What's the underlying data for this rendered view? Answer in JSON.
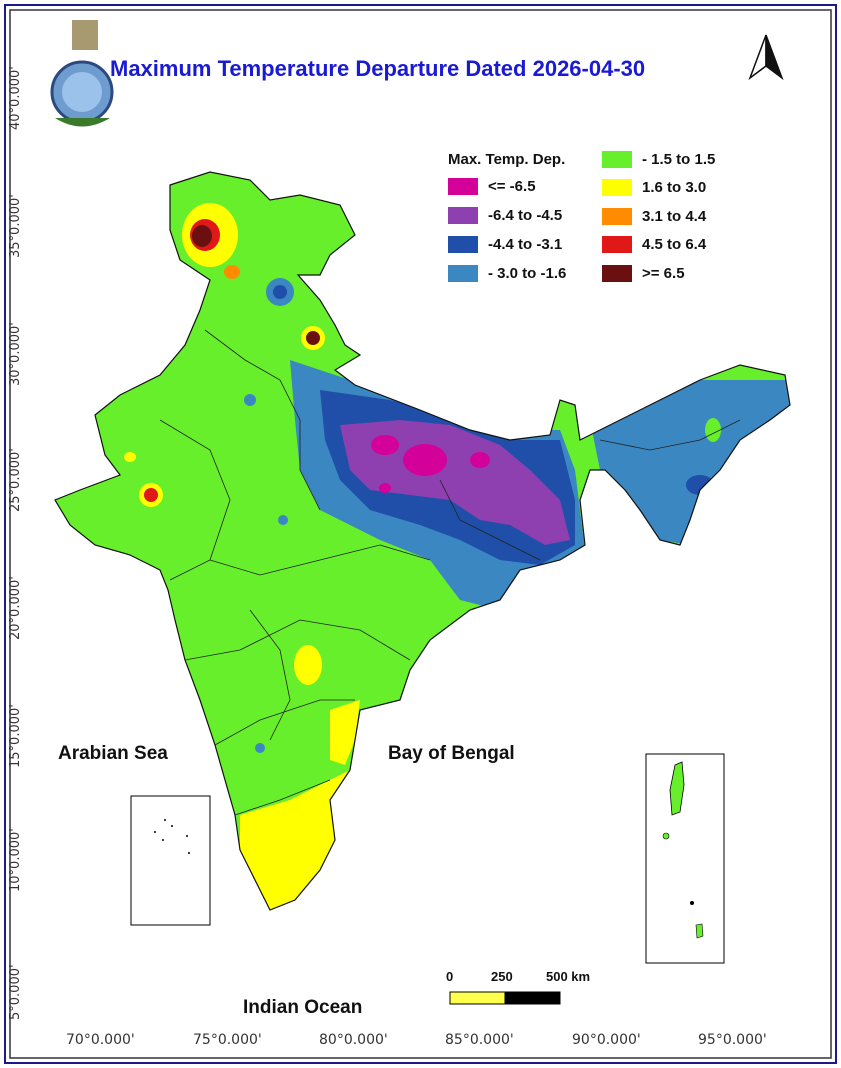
{
  "title": "Maximum Temperature Departure Dated 2026-04-30",
  "legend": {
    "title": "Max. Temp. Dep.",
    "items": [
      {
        "label": "<= -6.5",
        "color": "#d4009a"
      },
      {
        "label": "-6.4 to -4.5",
        "color": "#8e3fb0"
      },
      {
        "label": "-4.4 to -3.1",
        "color": "#1f4fa8"
      },
      {
        "label": "- 3.0 to -1.6",
        "color": "#3b87c2"
      },
      {
        "label": "- 1.5 to 1.5",
        "color": "#66ef2a"
      },
      {
        "label": "1.6 to  3.0",
        "color": "#ffff00"
      },
      {
        "label": "3.1 to 4.4",
        "color": "#ff8c00"
      },
      {
        "label": "4.5 to 6.4",
        "color": "#e01818"
      },
      {
        "label": ">= 6.5",
        "color": "#6a1010"
      }
    ]
  },
  "latitude_labels": [
    "40°0.000'",
    "35°0.000'",
    "30°0.000'",
    "25°0.000'",
    "20°0.000'",
    "15°0.000'",
    "10°0.000'",
    "5°0.000'"
  ],
  "longitude_labels": [
    "70°0.000'",
    "75°0.000'",
    "80°0.000'",
    "85°0.000'",
    "90°0.000'",
    "95°0.000'"
  ],
  "sea_labels": {
    "arabian": "Arabian Sea",
    "bengal": "Bay of Bengal",
    "indian": "Indian Ocean"
  },
  "scale_bar": {
    "ticks": [
      "0",
      "250",
      "500 km"
    ]
  }
}
